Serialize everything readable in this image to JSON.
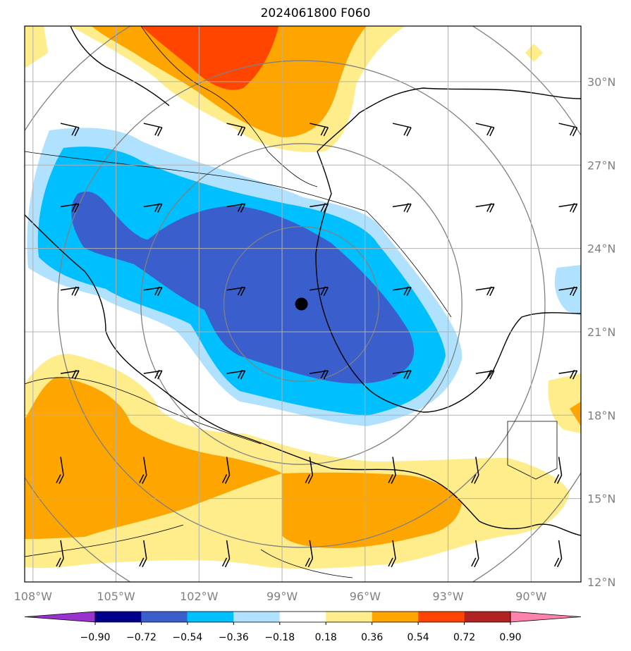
{
  "title": "2024061800 F060",
  "map": {
    "lon_range": [
      -108.3,
      -88.2
    ],
    "lat_range": [
      12.0,
      32.0
    ],
    "lon_ticks": [
      {
        "lon": -108,
        "label": "108°W"
      },
      {
        "lon": -105,
        "label": "105°W"
      },
      {
        "lon": -102,
        "label": "102°W"
      },
      {
        "lon": -99,
        "label": "99°W"
      },
      {
        "lon": -96,
        "label": "96°W"
      },
      {
        "lon": -93,
        "label": "93°W"
      },
      {
        "lon": -90,
        "label": "90°W"
      }
    ],
    "lat_ticks": [
      {
        "lat": 30,
        "label": "30°N"
      },
      {
        "lat": 27,
        "label": "27°N"
      },
      {
        "lat": 24,
        "label": "24°N"
      },
      {
        "lat": 21,
        "label": "21°N"
      },
      {
        "lat": 18,
        "label": "18°N"
      },
      {
        "lat": 15,
        "label": "15°N"
      },
      {
        "lat": 12,
        "label": "12°N"
      }
    ],
    "center_marker": {
      "lon": -98.3,
      "lat": 22.0
    },
    "range_rings_deg": [
      2.8,
      5.8,
      8.8,
      11.8
    ],
    "grid": true
  },
  "colorbar": {
    "colors": [
      "#9a32cd",
      "#00008b",
      "#3a5fcd",
      "#00bfff",
      "#b0e2ff",
      "#ffffff",
      "#ffec8b",
      "#ffa500",
      "#ff4500",
      "#b22222",
      "#ff82ab"
    ],
    "labels": [
      "−0.90",
      "−0.72",
      "−0.54",
      "−0.36",
      "−0.18",
      "0.18",
      "0.36",
      "0.54",
      "0.72",
      "0.90"
    ],
    "extend": "both"
  }
}
